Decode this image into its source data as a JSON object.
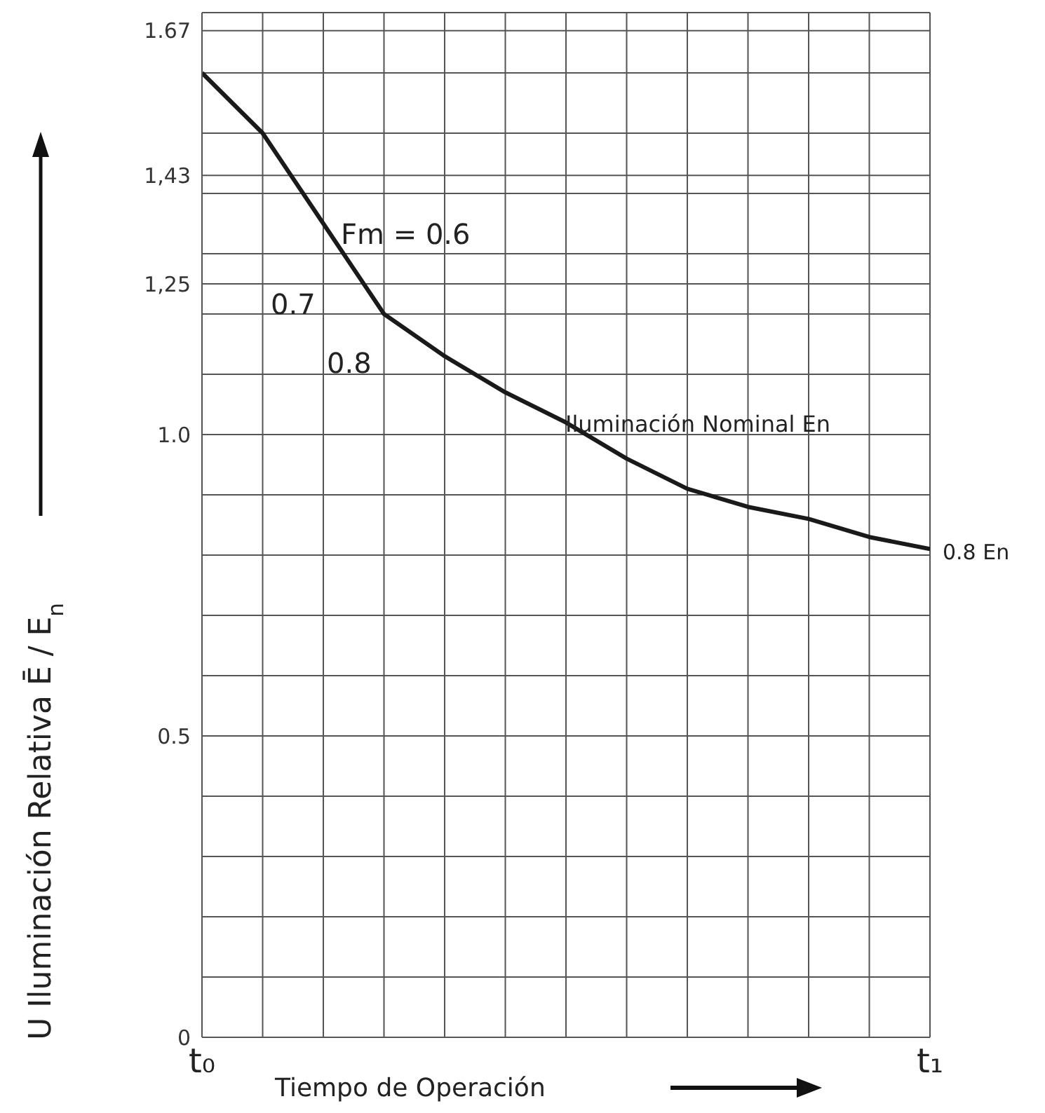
{
  "chart_data": {
    "type": "line",
    "xlabel": "Tiempo de Operación",
    "ylabel": "U Iluminación Relativa Ē / E$_{n}$",
    "categories": [
      "t₀",
      null,
      null,
      null,
      null,
      null,
      null,
      null,
      null,
      null,
      null,
      null,
      "t₁"
    ],
    "series": [
      {
        "color": "#1a1a1a",
        "values": [
          1.6,
          1.5,
          1.35,
          1.2,
          1.13,
          1.07,
          1.02,
          0.96,
          0.91,
          0.88,
          0.86,
          0.83,
          0.81
        ]
      }
    ],
    "ylim": [
      0,
      1.7
    ],
    "yticks": [
      0,
      {
        "value": 0.1,
        "label": null
      },
      {
        "value": 0.2,
        "label": null
      },
      {
        "value": 0.3,
        "label": null
      },
      {
        "value": 0.4,
        "label": null
      },
      0.5,
      {
        "value": 0.6,
        "label": null
      },
      {
        "value": 0.7,
        "label": null
      },
      {
        "value": 0.8,
        "label": null
      },
      {
        "value": 0.9,
        "label": null
      },
      {
        "value": 1,
        "label": "1.0"
      },
      {
        "value": 1.1,
        "label": null
      },
      {
        "value": 1.2,
        "label": null
      },
      {
        "value": 1.25,
        "label": "1,25"
      },
      {
        "value": 1.3,
        "label": null
      },
      {
        "value": 1.4,
        "label": null
      },
      {
        "value": 1.43,
        "label": "1,43"
      },
      {
        "value": 1.5,
        "label": null
      },
      {
        "value": 1.6,
        "label": null
      },
      1.67,
      {
        "value": 1.7,
        "label": null
      }
    ],
    "grid": true,
    "annotations": [
      "Fm = 0.6",
      "0.7",
      "0.8",
      "Iluminación Nominal En",
      "0.8 En"
    ]
  }
}
